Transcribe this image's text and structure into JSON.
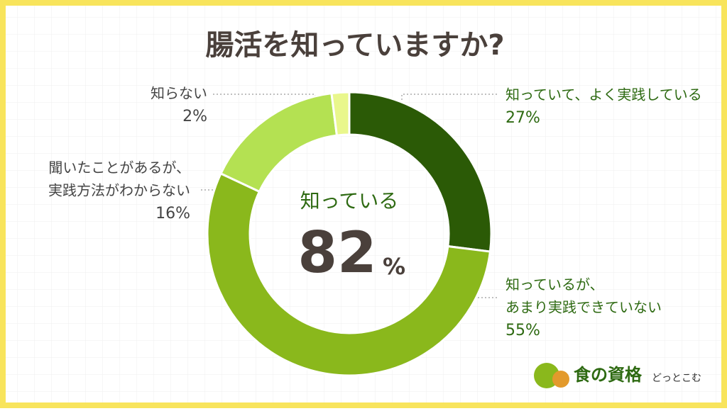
{
  "chart_data": {
    "type": "donut",
    "title": "腸活を知っていますか?",
    "categories": [
      [
        "知っていて、よく実践している"
      ],
      [
        "知っているが、",
        "あまり実践できていない"
      ],
      [
        "聞いたことがあるが、",
        "実践方法がわからない"
      ],
      [
        "知らない"
      ]
    ],
    "values": [
      27,
      55,
      16,
      2
    ],
    "value_labels": [
      "27%",
      "55%",
      "16%",
      "2%"
    ],
    "colors": [
      "#2b5a06",
      "#8ab81c",
      "#b4e152",
      "#e9f78c"
    ],
    "label_colors": [
      "#2e6a12",
      "#2e6a12",
      "#444444",
      "#444444"
    ],
    "center_label": "知っている",
    "center_value": 82,
    "center_unit": "%"
  },
  "logo": {
    "main": "食の資格",
    "sub": "どっとこむ"
  }
}
